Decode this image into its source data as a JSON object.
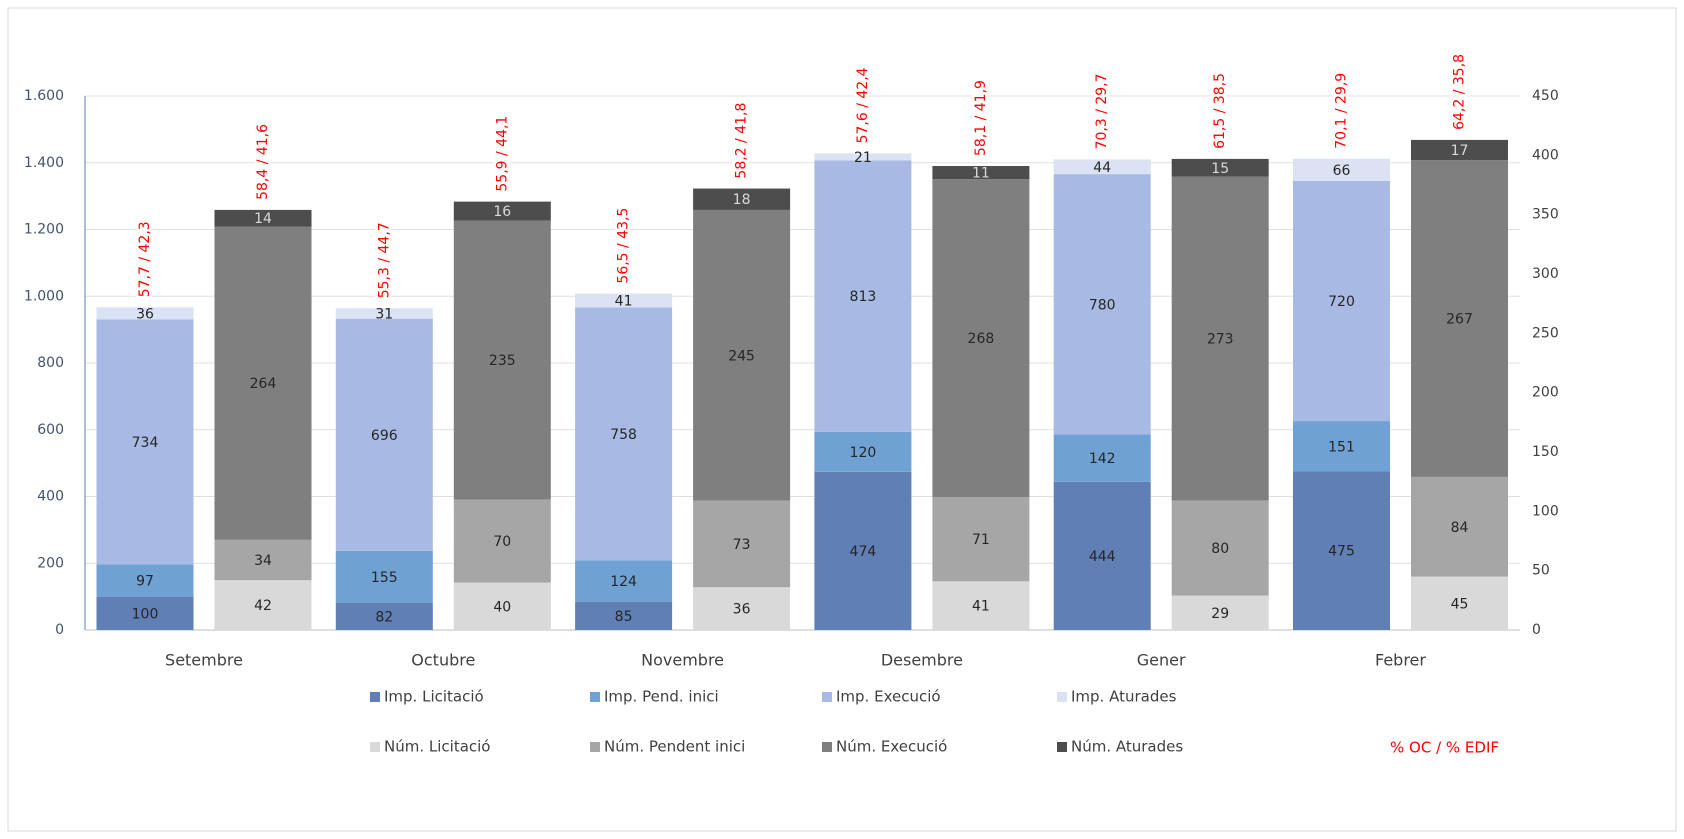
{
  "chart_data": {
    "type": "stacked_bar",
    "categories": [
      "Setembre",
      "Octubre",
      "Novembre",
      "Desembre",
      "Gener",
      "Febrer"
    ],
    "series": [
      {
        "name": "Imp. Licitació",
        "color": "#5f7fb5",
        "axis": "y",
        "values": [
          100,
          82,
          85,
          474,
          444,
          475
        ]
      },
      {
        "name": "Imp. Pend. inici",
        "color": "#6fa2d3",
        "axis": "y",
        "values": [
          97,
          155,
          124,
          120,
          142,
          151
        ]
      },
      {
        "name": "Imp. Execució",
        "color": "#a8bae4",
        "axis": "y",
        "values": [
          734,
          696,
          758,
          813,
          780,
          720
        ]
      },
      {
        "name": "Imp. Aturades",
        "color": "#dae2f3",
        "axis": "y",
        "values": [
          36,
          31,
          41,
          21,
          44,
          66
        ]
      },
      {
        "name": "Núm. Licitació",
        "color": "#d9d9d9",
        "axis": "y2",
        "values": [
          42,
          40,
          36,
          41,
          29,
          45
        ]
      },
      {
        "name": "Núm. Pendent inici",
        "color": "#a6a6a6",
        "axis": "y2",
        "values": [
          34,
          70,
          73,
          71,
          80,
          84
        ]
      },
      {
        "name": "Núm. Execució",
        "color": "#7f7f7f",
        "axis": "y2",
        "values": [
          264,
          235,
          245,
          268,
          273,
          267
        ]
      },
      {
        "name": "Núm. Aturades",
        "color": "#4d4d4d",
        "axis": "y2",
        "values": [
          14,
          16,
          18,
          11,
          15,
          17
        ]
      }
    ],
    "annotations": {
      "y": [
        "57,7 / 42,3",
        "55,3 / 44,7",
        "56,5 / 43,5",
        "57,6 / 42,4",
        "70,3 / 29,7",
        "70,1 / 29,9"
      ],
      "y2": [
        "58,4 / 41,6",
        "55,9 / 44,1",
        "58,2 / 41,8",
        "58,1 / 41,9",
        "61,5 / 38,5",
        "64,2 / 35,8"
      ]
    },
    "annotation_legend": "% OC / % EDIF",
    "annotation_color": "#ff0000",
    "ylim": [
      0,
      1600
    ],
    "yticks": [
      0,
      200,
      400,
      600,
      800,
      {
        "value": 1000,
        "label": "1.000"
      },
      {
        "value": 1200,
        "label": "1.200"
      },
      {
        "value": 1400,
        "label": "1.400"
      },
      {
        "value": 1600,
        "label": "1.600"
      }
    ],
    "y2lim": [
      0,
      450
    ],
    "y2ticks": [
      0,
      50,
      100,
      150,
      200,
      250,
      300,
      350,
      400,
      450
    ],
    "grid": true
  }
}
